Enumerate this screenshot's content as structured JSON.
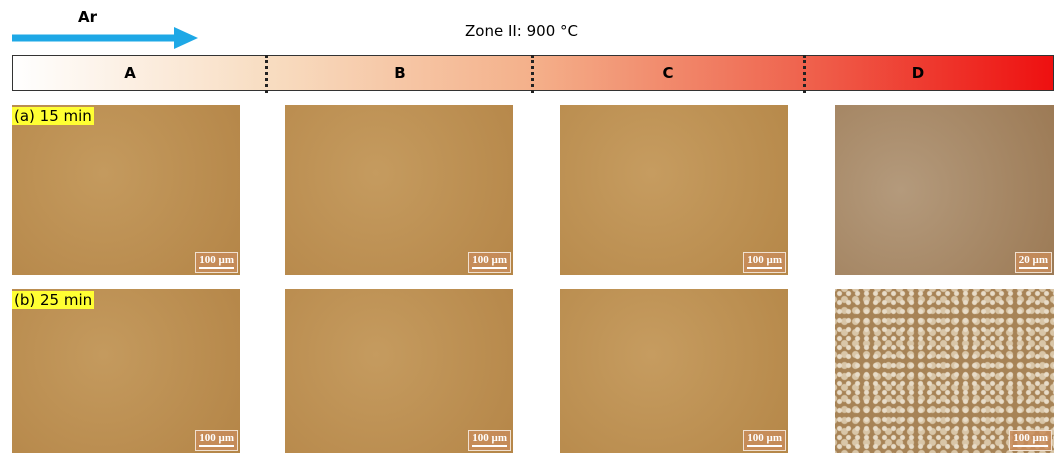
{
  "header": {
    "flow_label": "Ar",
    "zone_title": "Zone II: 900 °C",
    "zones": [
      "A",
      "B",
      "C",
      "D"
    ]
  },
  "rows": [
    {
      "label": "(a) 15 min",
      "scale_bars": [
        "100 µm",
        "100 µm",
        "100 µm",
        "20 µm"
      ]
    },
    {
      "label": "(b) 25 min",
      "scale_bars": [
        "100 µm",
        "100 µm",
        "100 µm",
        "100 µm"
      ]
    }
  ]
}
